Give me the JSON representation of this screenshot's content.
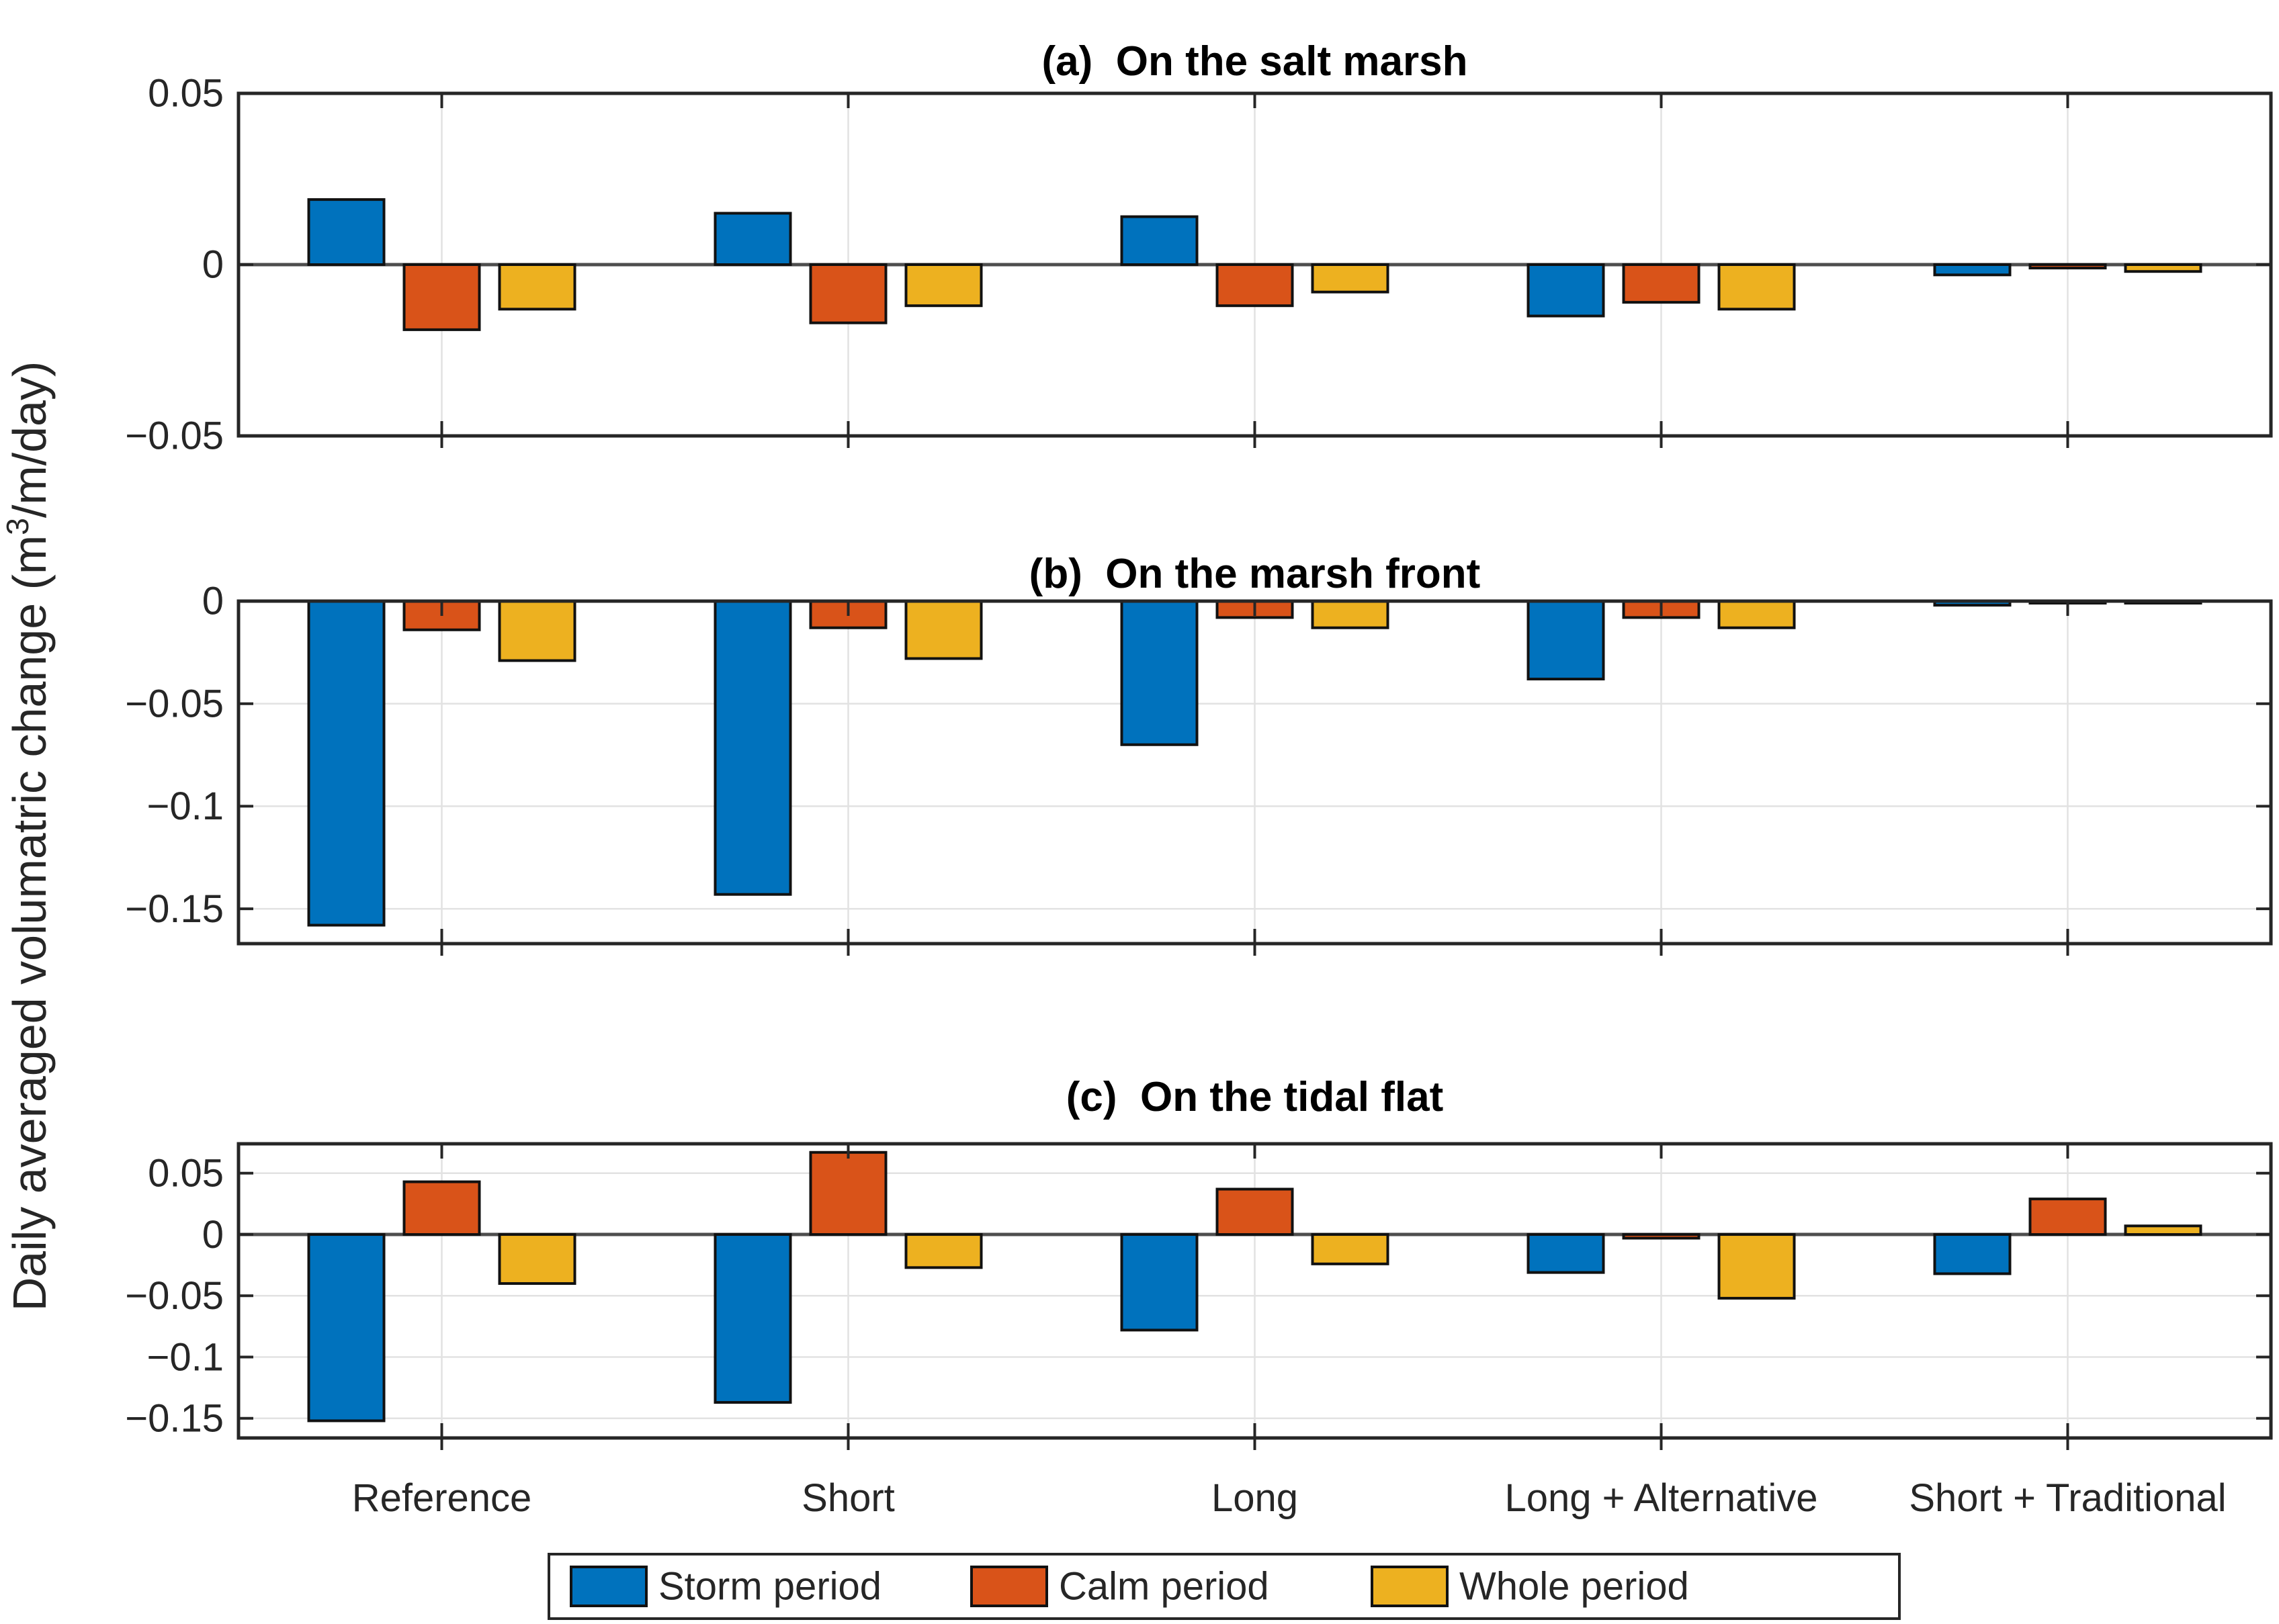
{
  "figure": {
    "ylabel": {
      "prefix": "Daily averaged volumatric change (m",
      "superscript": "3",
      "suffix": "/m/day)"
    },
    "colors": {
      "storm": "#0072BD",
      "calm": "#D95319",
      "whole": "#EDB120",
      "bar_edge": "#111111",
      "axis": "#262626",
      "grid": "#e2e2e2",
      "baseline": "#4d4d4d",
      "background": "#ffffff"
    },
    "legend": {
      "position": "bottom",
      "entries": [
        {
          "label": "Storm period",
          "color_key": "storm"
        },
        {
          "label": "Calm period",
          "color_key": "calm"
        },
        {
          "label": "Whole period",
          "color_key": "whole"
        }
      ]
    }
  },
  "chart_data": [
    {
      "type": "bar",
      "title": "(a)  On the salt marsh",
      "xlabel": "",
      "ylabel": "Daily averaged volumatric change (m3/m/day)",
      "categories": [
        "Reference",
        "Short",
        "Long",
        "Long + Alternative",
        "Short + Traditional"
      ],
      "ylim": [
        -0.05,
        0.05
      ],
      "grid": true,
      "yticks": [
        {
          "v": 0.05,
          "label": "0.05"
        },
        {
          "v": 0,
          "label": "0"
        },
        {
          "v": -0.05,
          "label": "−0.05"
        }
      ],
      "series": [
        {
          "name": "Storm period",
          "color_key": "storm",
          "values": [
            0.019,
            0.015,
            0.014,
            -0.015,
            -0.003
          ]
        },
        {
          "name": "Calm period",
          "color_key": "calm",
          "values": [
            -0.019,
            -0.017,
            -0.012,
            -0.011,
            -0.001
          ]
        },
        {
          "name": "Whole period",
          "color_key": "whole",
          "values": [
            -0.013,
            -0.012,
            -0.008,
            -0.013,
            -0.002
          ]
        }
      ]
    },
    {
      "type": "bar",
      "title": "(b)  On the marsh front",
      "xlabel": "",
      "ylabel": "Daily averaged volumatric change (m3/m/day)",
      "categories": [
        "Reference",
        "Short",
        "Long",
        "Long + Alternative",
        "Short + Traditional"
      ],
      "ylim": [
        -0.167,
        0
      ],
      "grid": true,
      "yticks": [
        {
          "v": 0,
          "label": "0"
        },
        {
          "v": -0.05,
          "label": "−0.05"
        },
        {
          "v": -0.1,
          "label": "−0.1"
        },
        {
          "v": -0.15,
          "label": "−0.15"
        }
      ],
      "series": [
        {
          "name": "Storm period",
          "color_key": "storm",
          "values": [
            -0.158,
            -0.143,
            -0.07,
            -0.038,
            -0.002
          ]
        },
        {
          "name": "Calm period",
          "color_key": "calm",
          "values": [
            -0.014,
            -0.013,
            -0.008,
            -0.008,
            -0.001
          ]
        },
        {
          "name": "Whole period",
          "color_key": "whole",
          "values": [
            -0.029,
            -0.028,
            -0.013,
            -0.013,
            -0.001
          ]
        }
      ]
    },
    {
      "type": "bar",
      "title": "(c)  On the tidal flat",
      "xlabel": "",
      "ylabel": "Daily averaged volumatric change (m3/m/day)",
      "categories": [
        "Reference",
        "Short",
        "Long",
        "Long + Alternative",
        "Short + Traditional"
      ],
      "ylim": [
        -0.166,
        0.074
      ],
      "grid": true,
      "yticks": [
        {
          "v": 0.05,
          "label": "0.05"
        },
        {
          "v": 0,
          "label": "0"
        },
        {
          "v": -0.05,
          "label": "−0.05"
        },
        {
          "v": -0.1,
          "label": "−0.1"
        },
        {
          "v": -0.15,
          "label": "−0.15"
        }
      ],
      "series": [
        {
          "name": "Storm period",
          "color_key": "storm",
          "values": [
            -0.152,
            -0.137,
            -0.078,
            -0.031,
            -0.032
          ]
        },
        {
          "name": "Calm period",
          "color_key": "calm",
          "values": [
            0.043,
            0.067,
            0.037,
            -0.003,
            0.029
          ]
        },
        {
          "name": "Whole period",
          "color_key": "whole",
          "values": [
            -0.04,
            -0.027,
            -0.024,
            -0.052,
            0.007
          ]
        }
      ]
    }
  ]
}
